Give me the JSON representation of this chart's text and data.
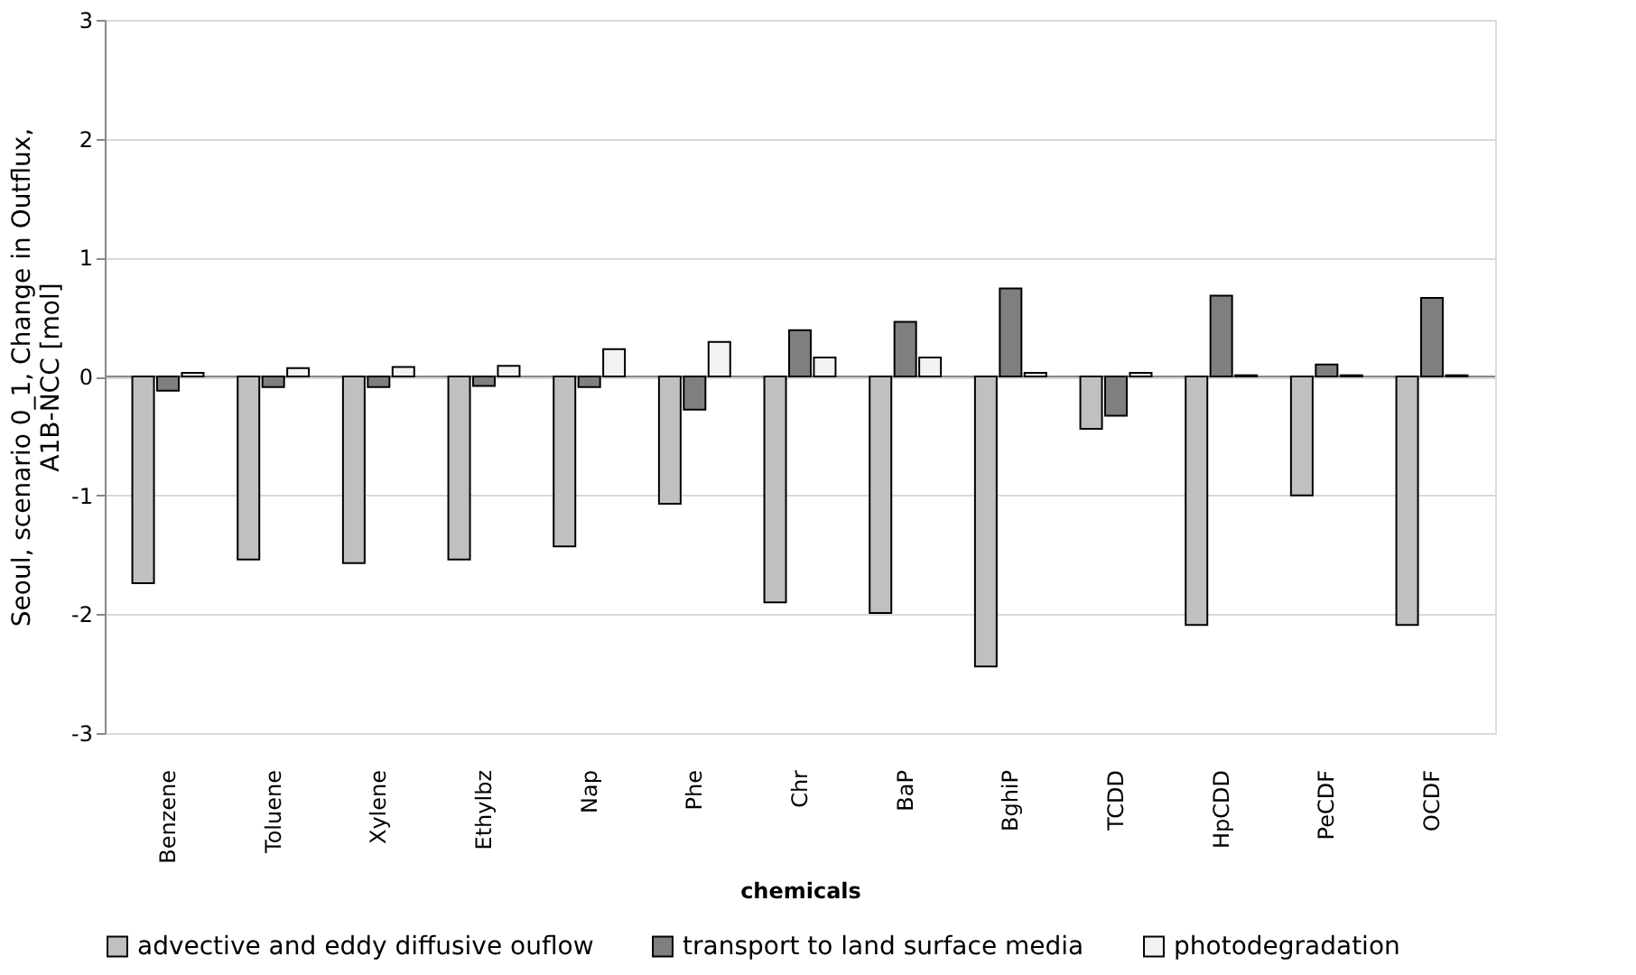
{
  "chart_data": {
    "type": "bar",
    "xlabel": "chemicals",
    "ylabel": "Seoul, scenario 0_1, Change in Outflux, A1B-NCC [mol]",
    "categories": [
      "Benzene",
      "Toluene",
      "Xylene",
      "Ethylbz",
      "Nap",
      "Phe",
      "Chr",
      "BaP",
      "BghiP",
      "TCDD",
      "HpCDD",
      "PeCDF",
      "OCDF"
    ],
    "series": [
      {
        "name": "advective and eddy diffusive ouflow",
        "color": "#c0c0c0",
        "values": [
          -1.74,
          -1.54,
          -1.57,
          -1.54,
          -1.43,
          -1.07,
          -1.9,
          -1.99,
          -2.44,
          -0.44,
          -2.09,
          -1.0,
          -2.09
        ]
      },
      {
        "name": "transport to land surface media",
        "color": "#7f7f7f",
        "values": [
          -0.12,
          -0.09,
          -0.09,
          -0.08,
          -0.09,
          -0.28,
          0.39,
          0.46,
          0.74,
          -0.33,
          0.68,
          0.1,
          0.66
        ]
      },
      {
        "name": "photodegradation",
        "color": "#f2f2f2",
        "values": [
          0.03,
          0.07,
          0.08,
          0.09,
          0.23,
          0.29,
          0.16,
          0.16,
          0.03,
          0.03,
          0.01,
          0.01,
          0.01
        ]
      }
    ],
    "ylim": [
      -3,
      3
    ],
    "yticks": [
      -3,
      -2,
      -1,
      0,
      1,
      2,
      3
    ],
    "grid": "y",
    "legend": "bottom"
  }
}
